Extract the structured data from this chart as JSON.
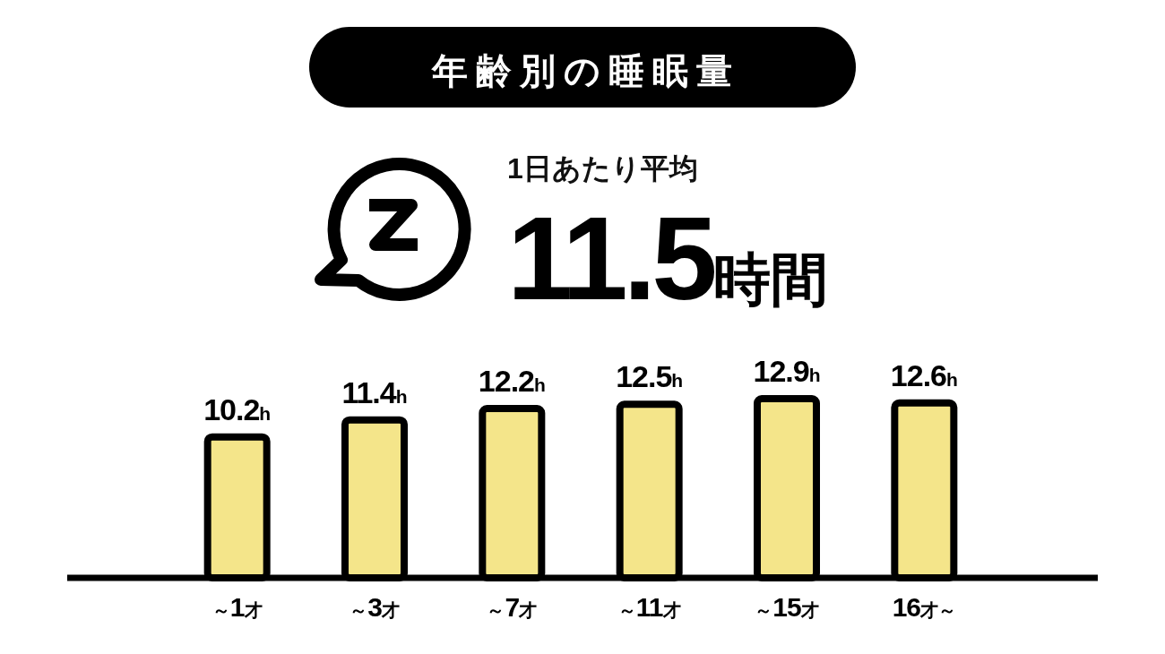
{
  "chart_data": {
    "type": "bar",
    "title": "年齢別の睡眠量",
    "categories": [
      "～1才",
      "～3才",
      "～7才",
      "～11才",
      "～15才",
      "16才～"
    ],
    "values": [
      10.2,
      11.4,
      12.2,
      12.5,
      12.9,
      12.6
    ],
    "color": "#f4e58a",
    "value_labels": [
      "10.2h",
      "11.4h",
      "12.2h",
      "12.5h",
      "12.9h",
      "12.6h"
    ],
    "annotations": [
      "1日あたり平均",
      "11.5時間"
    ]
  }
}
